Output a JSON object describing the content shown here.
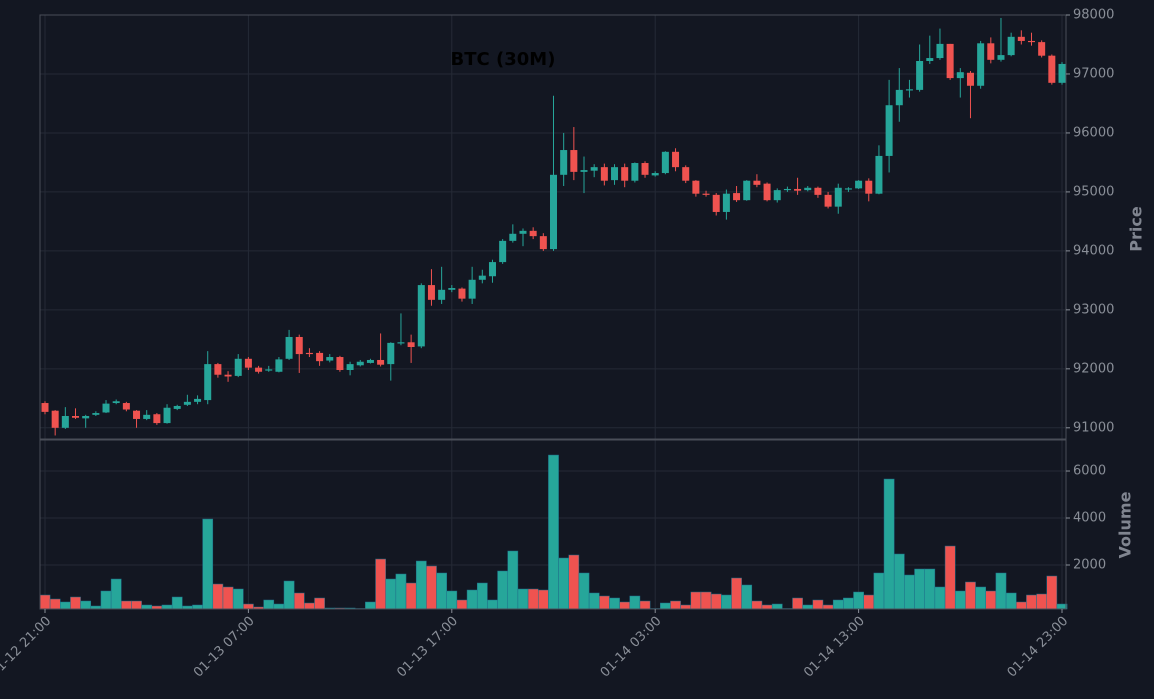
{
  "chart_data": {
    "type": "candlestick",
    "title": "BTC (30M)",
    "ylabel": "Price",
    "volume_label": "Volume",
    "up_color": "#26a69a",
    "down_color": "#ef5350",
    "grid": true,
    "categories": [
      "01-12 21:00",
      null,
      null,
      null,
      null,
      null,
      null,
      null,
      null,
      null,
      null,
      null,
      null,
      null,
      null,
      null,
      null,
      null,
      null,
      null,
      "01-13 07:00",
      null,
      null,
      null,
      null,
      null,
      null,
      null,
      null,
      null,
      null,
      null,
      null,
      null,
      null,
      null,
      null,
      null,
      null,
      null,
      "01-13 17:00",
      null,
      null,
      null,
      null,
      null,
      null,
      null,
      null,
      null,
      null,
      null,
      null,
      null,
      null,
      null,
      null,
      null,
      null,
      null,
      "01-14 03:00",
      null,
      null,
      null,
      null,
      null,
      null,
      null,
      null,
      null,
      null,
      null,
      null,
      null,
      null,
      null,
      null,
      null,
      null,
      null,
      "01-14 13:00",
      null,
      null,
      null,
      null,
      null,
      null,
      null,
      null,
      null,
      null,
      null,
      null,
      null,
      null,
      null,
      null,
      null,
      null,
      null,
      "01-14 23:00"
    ],
    "open": [
      91420,
      91290,
      91000,
      91200,
      91160,
      91220,
      91260,
      91420,
      91420,
      91290,
      91150,
      91230,
      91080,
      91320,
      91390,
      91440,
      91470,
      92080,
      91900,
      91880,
      92170,
      92020,
      91970,
      91950,
      92170,
      92540,
      92270,
      92270,
      92140,
      92200,
      91980,
      92060,
      92100,
      92150,
      92080,
      92430,
      92450,
      92380,
      93420,
      93170,
      93340,
      93360,
      93190,
      93510,
      93570,
      93810,
      94170,
      94290,
      94340,
      94250,
      94030,
      95290,
      95710,
      95340,
      95360,
      95420,
      95200,
      95420,
      95190,
      95490,
      95280,
      95320,
      95680,
      95420,
      95190,
      94970,
      94950,
      94660,
      94980,
      94860,
      95190,
      95140,
      94860,
      95030,
      95050,
      95030,
      95070,
      94950,
      94750,
      95040,
      95060,
      95190,
      94970,
      95610,
      96470,
      96720,
      96730,
      97220,
      97270,
      97510,
      96930,
      97020,
      96800,
      97520,
      97240,
      97320,
      97630,
      97560,
      97540,
      97310,
      96850
    ],
    "high": [
      91450,
      91300,
      91350,
      91330,
      91220,
      91280,
      91470,
      91480,
      91440,
      91300,
      91300,
      91250,
      91400,
      91390,
      91560,
      91550,
      92300,
      92100,
      91960,
      92250,
      92200,
      92050,
      92050,
      92200,
      92660,
      92580,
      92350,
      92300,
      92250,
      92220,
      92120,
      92150,
      92170,
      92600,
      92450,
      92940,
      92580,
      93450,
      93690,
      93730,
      93420,
      93380,
      93730,
      93680,
      93850,
      94200,
      94450,
      94380,
      94400,
      94300,
      96630,
      96000,
      96100,
      95600,
      95470,
      95480,
      95470,
      95480,
      95500,
      95520,
      95350,
      95690,
      95740,
      95450,
      95200,
      95020,
      94980,
      95040,
      95100,
      95200,
      95300,
      95160,
      95060,
      95090,
      95240,
      95100,
      95090,
      95000,
      95140,
      95080,
      95200,
      95230,
      95790,
      96900,
      97100,
      96900,
      97500,
      97650,
      97770,
      97510,
      97100,
      97050,
      97560,
      97620,
      97950,
      97700,
      97740,
      97700,
      97570,
      97330,
      97200
    ],
    "low": [
      91230,
      90870,
      90980,
      91150,
      91000,
      91200,
      91250,
      91400,
      91280,
      91000,
      91130,
      91050,
      91070,
      91300,
      91370,
      91400,
      91400,
      91850,
      91780,
      91860,
      91980,
      91920,
      91950,
      91940,
      92150,
      91930,
      92200,
      92050,
      92110,
      91950,
      91890,
      92040,
      92090,
      92040,
      91800,
      92400,
      92100,
      92350,
      93070,
      93100,
      93300,
      93140,
      93100,
      93450,
      93460,
      93780,
      94140,
      94080,
      94200,
      94000,
      94000,
      95100,
      95200,
      94980,
      95250,
      95110,
      95120,
      95080,
      95160,
      95240,
      95260,
      95300,
      95350,
      95150,
      94920,
      94920,
      94600,
      94530,
      94830,
      94850,
      95080,
      94840,
      94820,
      95000,
      94950,
      95010,
      94900,
      94720,
      94630,
      95000,
      95050,
      94840,
      94960,
      95330,
      96190,
      96600,
      96700,
      97170,
      97240,
      96900,
      96600,
      96250,
      96750,
      97180,
      97210,
      97300,
      97500,
      97480,
      97280,
      96820,
      96820
    ],
    "close": [
      91270,
      91000,
      91200,
      91170,
      91200,
      91250,
      91410,
      91450,
      91310,
      91150,
      91220,
      91080,
      91340,
      91370,
      91440,
      91490,
      92080,
      91900,
      91870,
      92170,
      92020,
      91950,
      91990,
      92160,
      92540,
      92250,
      92250,
      92130,
      92200,
      91980,
      92080,
      92120,
      92150,
      92070,
      92440,
      92450,
      92370,
      93420,
      93170,
      93340,
      93370,
      93190,
      93510,
      93580,
      93810,
      94170,
      94290,
      94340,
      94250,
      94030,
      95290,
      95710,
      95340,
      95370,
      95420,
      95190,
      95420,
      95190,
      95490,
      95290,
      95320,
      95680,
      95420,
      95190,
      94970,
      94950,
      94660,
      94970,
      94860,
      95190,
      95120,
      94860,
      95030,
      95050,
      95020,
      95070,
      94950,
      94750,
      95070,
      95060,
      95190,
      94970,
      95610,
      96470,
      96730,
      96740,
      97220,
      97270,
      97510,
      96930,
      97030,
      96800,
      97520,
      97240,
      97320,
      97630,
      97560,
      97540,
      97310,
      96850,
      97170
    ],
    "volume": [
      723,
      553,
      426,
      638,
      468,
      255,
      894,
      1404,
      468,
      468,
      298,
      255,
      298,
      638,
      255,
      298,
      3957,
      1191,
      1064,
      979,
      340,
      213,
      511,
      340,
      1319,
      809,
      383,
      596,
      170,
      170,
      170,
      150,
      426,
      2255,
      1404,
      1617,
      1234,
      2170,
      1957,
      1660,
      894,
      511,
      936,
      1234,
      511,
      1745,
      2596,
      979,
      979,
      936,
      6680,
      2298,
      2426,
      1660,
      809,
      681,
      596,
      426,
      681,
      468,
      150,
      383,
      468,
      298,
      851,
      851,
      766,
      723,
      1447,
      1149,
      468,
      298,
      340,
      150,
      596,
      298,
      511,
      298,
      511,
      596,
      851,
      723,
      1660,
      5659,
      2468,
      1574,
      1830,
      1830,
      1064,
      2808,
      894,
      1277,
      1064,
      894,
      1660,
      809,
      426,
      723,
      766,
      1532,
      340
    ],
    "ylim": [
      90810,
      98000
    ],
    "yticks": [
      91000,
      92000,
      93000,
      94000,
      95000,
      96000,
      97000,
      98000
    ],
    "volume_ylim": [
      128,
      7320
    ],
    "volume_yticks": [
      2000,
      4000,
      6000
    ]
  }
}
